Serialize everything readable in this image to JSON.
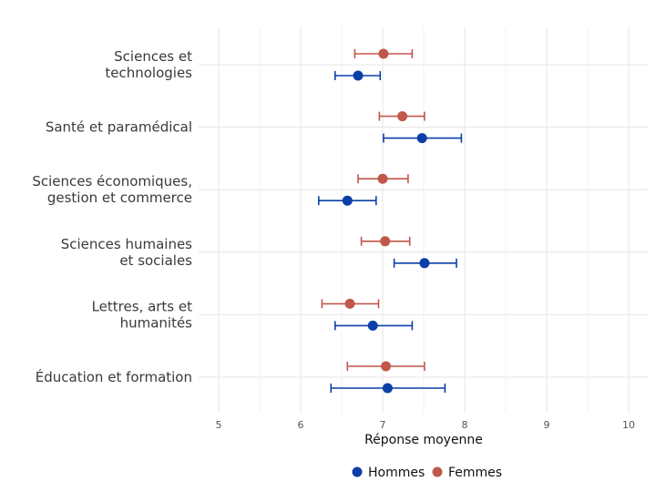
{
  "chart_data": {
    "type": "dot-errorbar",
    "xlabel": "Réponse moyenne",
    "xlim": [
      5,
      10
    ],
    "xticks": [
      5,
      6,
      7,
      8,
      9,
      10
    ],
    "categories": [
      [
        "Sciences et",
        "technologies"
      ],
      [
        "Santé et paramédical"
      ],
      [
        "Sciences économiques,",
        "gestion et commerce"
      ],
      [
        "Sciences humaines",
        "et sociales"
      ],
      [
        "Lettres, arts et",
        "humanités"
      ],
      [
        "Éducation et formation"
      ]
    ],
    "series": [
      {
        "name": "Hommes",
        "color": "#0b3fa8",
        "values": [
          6.7,
          7.48,
          6.57,
          7.51,
          6.88,
          7.06
        ],
        "lower": [
          6.42,
          7.01,
          6.22,
          7.14,
          6.42,
          6.37
        ],
        "upper": [
          6.97,
          7.96,
          6.92,
          7.9,
          7.36,
          7.76
        ]
      },
      {
        "name": "Femmes",
        "color": "#c0574a",
        "values": [
          7.01,
          7.24,
          7.0,
          7.03,
          6.6,
          7.04
        ],
        "lower": [
          6.66,
          6.96,
          6.7,
          6.74,
          6.26,
          6.57
        ],
        "upper": [
          7.36,
          7.51,
          7.31,
          7.33,
          6.95,
          7.51
        ]
      }
    ],
    "grid": true,
    "legend": "bottom"
  }
}
